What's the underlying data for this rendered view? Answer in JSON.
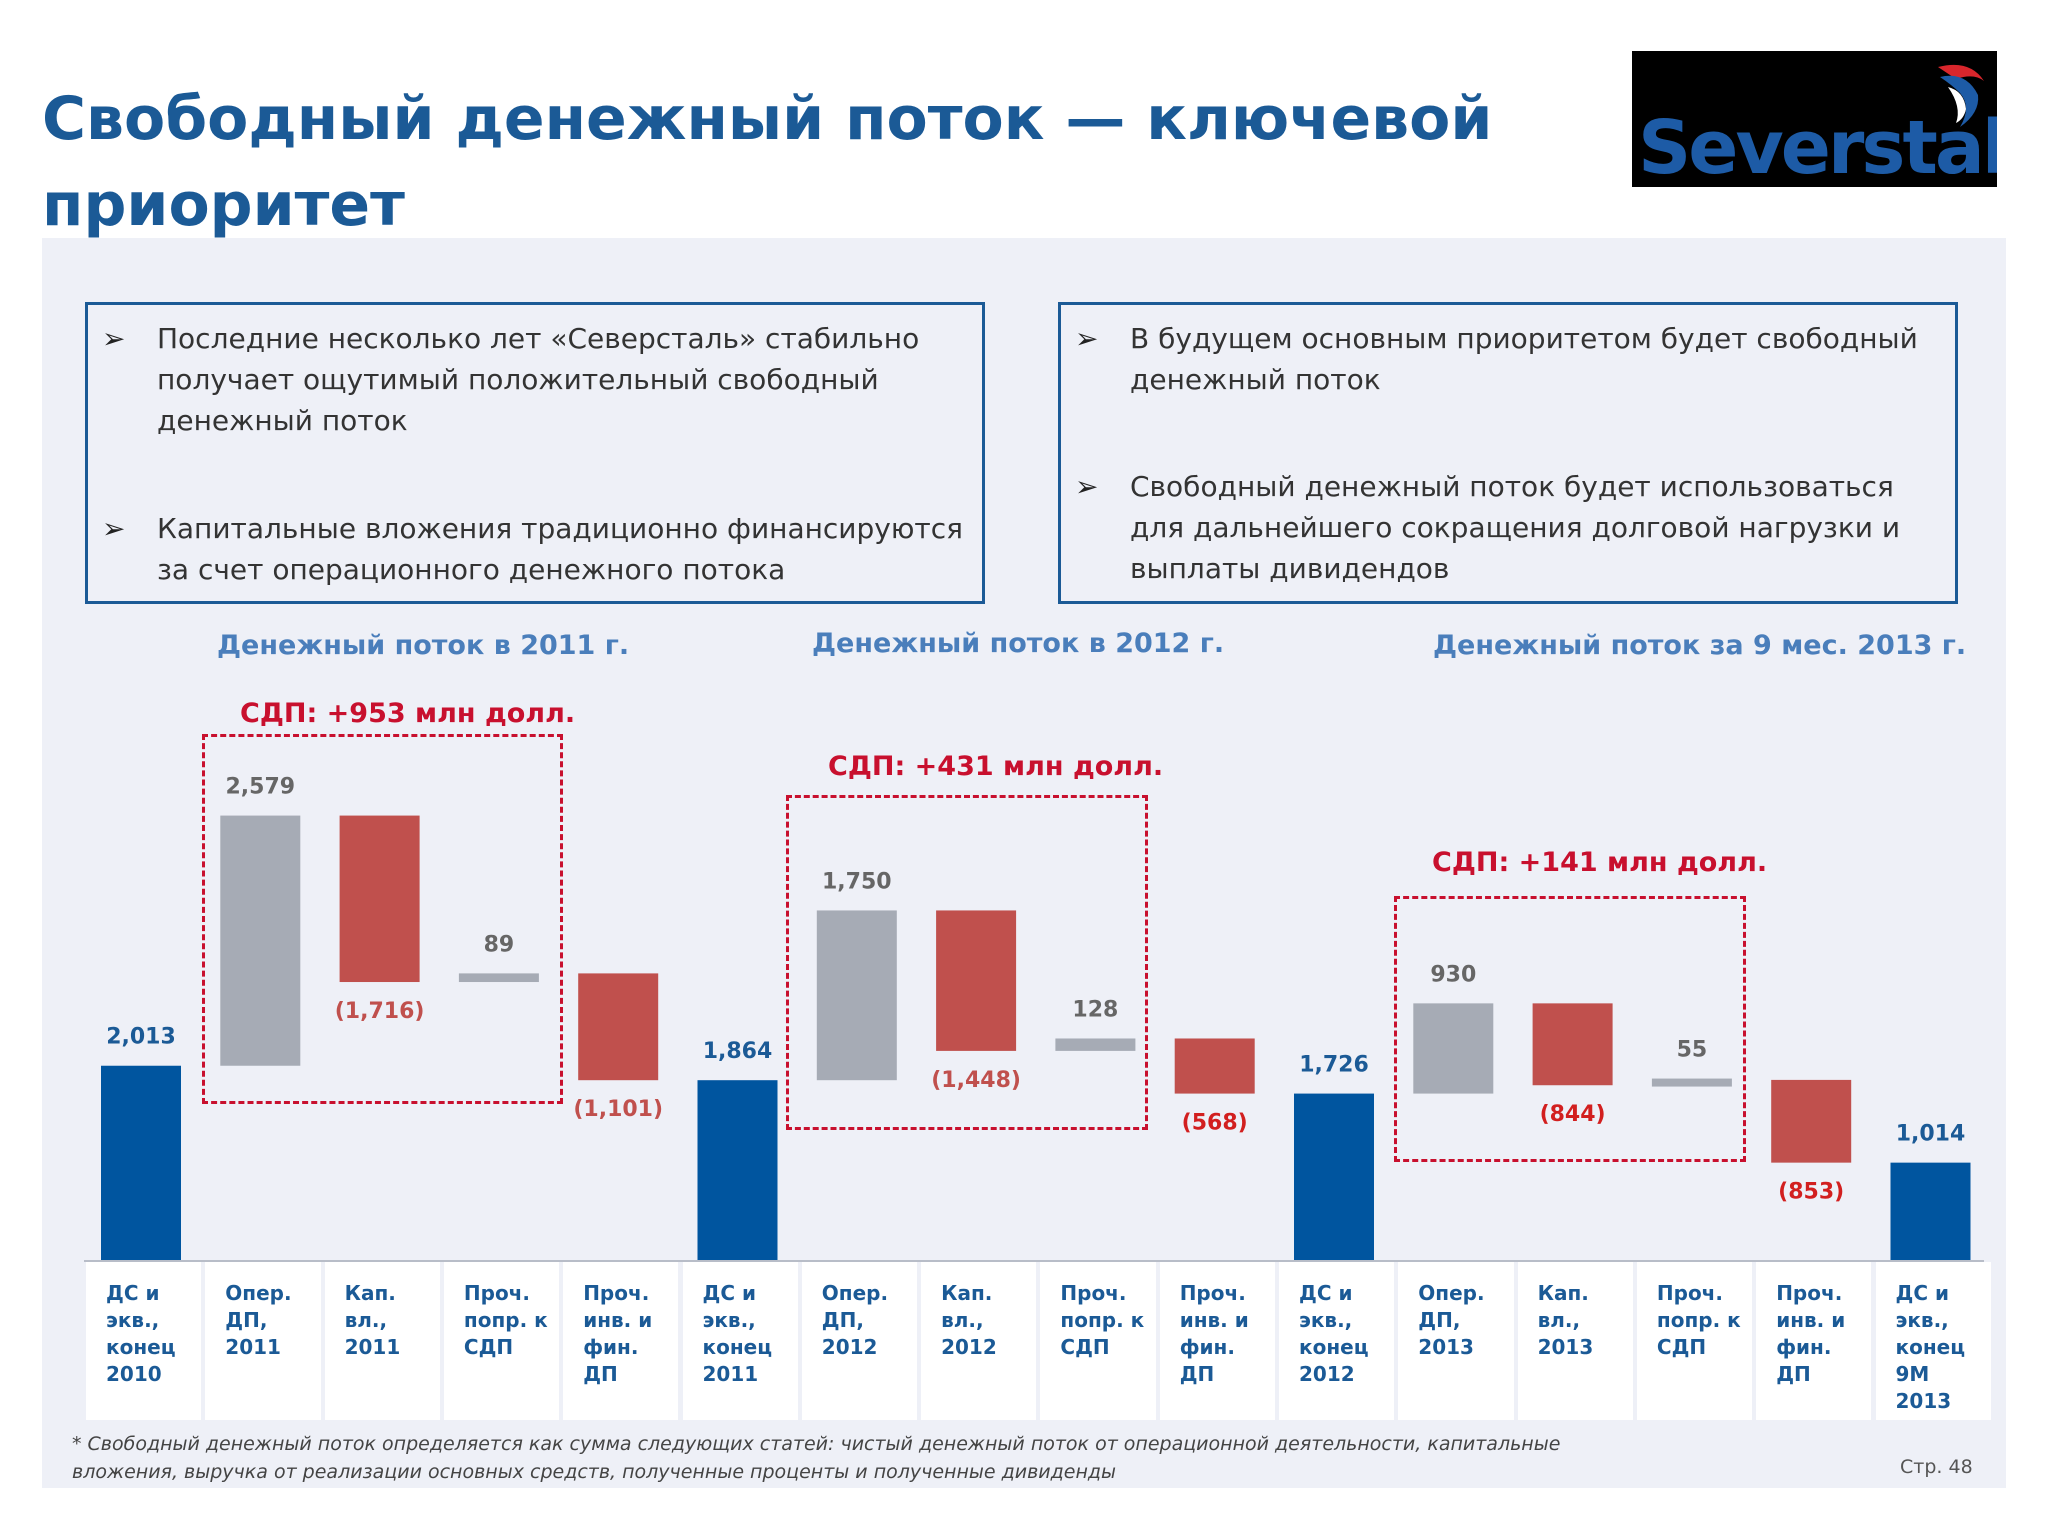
{
  "title": "Свободный денежный поток — ключевой приоритет",
  "logo": {
    "text": "Severstal",
    "mark_icon": "severstal-swoosh-icon"
  },
  "left_box": {
    "bullets": [
      "Последние несколько лет «Северсталь» стабильно получает ощутимый положительный свободный денежный поток",
      "Капитальные вложения традиционно финансируются за счет операционного денежного потока"
    ]
  },
  "right_box": {
    "bullets": [
      "В будущем основным приоритетом будет свободный денежный поток",
      "Свободный денежный поток будет использоваться для дальнейшего сокращения долговой нагрузки и выплаты дивидендов"
    ]
  },
  "bullet_glyph": "➢",
  "sections": [
    {
      "title": "Денежный поток в 2011 г.",
      "sdp": "СДП: +953 млн долл."
    },
    {
      "title": "Денежный поток в 2012 г.",
      "sdp": "СДП: +431 млн долл."
    },
    {
      "title": "Денежный поток за 9 мес. 2013 г.",
      "sdp": "СДП: +141 млн долл."
    }
  ],
  "chart_data": {
    "type": "bar",
    "subtype": "waterfall",
    "categories": [
      "ДС и экв., конец 2010",
      "Опер. ДП, 2011",
      "Кап. вл., 2011",
      "Проч. попр. к СДП",
      "Проч. инв. и фин. ДП",
      "ДС и экв., конец 2011",
      "Опер. ДП, 2012",
      "Кап. вл., 2012",
      "Проч. попр. к СДП",
      "Проч. инв. и фин. ДП",
      "ДС и экв., конец 2012",
      "Опер. ДП, 2013",
      "Кап. вл., 2013",
      "Проч. попр. к СДП",
      "Проч. инв. и фин. ДП",
      "ДС и экв., конец 9М 2013"
    ],
    "values": [
      2013,
      2579,
      -1716,
      89,
      -1101,
      1864,
      1750,
      -1448,
      128,
      -568,
      1726,
      930,
      -844,
      55,
      -853,
      1014
    ],
    "labels": [
      "2,013",
      "2,579",
      "(1,716)",
      "89",
      "(1,101)",
      "1,864",
      "1,750",
      "(1,448)",
      "128",
      "(568)",
      "1,726",
      "930",
      "(844)",
      "55",
      "(853)",
      "1,014"
    ],
    "kinds": [
      "total",
      "inflow",
      "outflow",
      "adjust",
      "outflow",
      "total",
      "inflow",
      "outflow",
      "adjust",
      "outflow",
      "total",
      "inflow",
      "outflow",
      "adjust",
      "outflow",
      "total"
    ],
    "colors": {
      "total": "#00559F",
      "inflow": "#A6ABB5",
      "outflow": "#C0504D",
      "adjust": "#A6ABB5"
    },
    "label_colors": {
      "total": "#1B5A96",
      "inflow": "#666666",
      "outflow": "#C0504D",
      "adjust": "#666666",
      "outflow_strong": "#D21F1F"
    },
    "sdp_groups": [
      [
        1,
        3
      ],
      [
        6,
        8
      ],
      [
        11,
        13
      ]
    ]
  },
  "footnote": "* Свободный денежный поток определяется как сумма следующих статей: чистый денежный поток от операционной деятельности, капитальные вложения, выручка от реализации основных средств, полученные проценты и полученные дивиденды",
  "page_number": "Стр. 48"
}
